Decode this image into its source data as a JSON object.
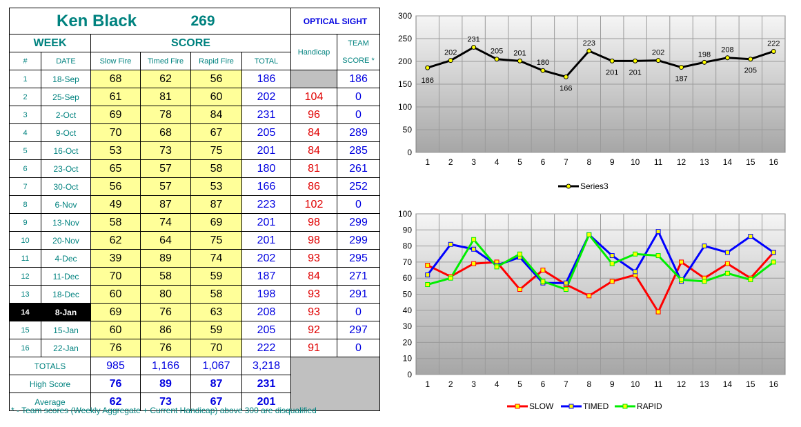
{
  "header": {
    "name": "Ken Black",
    "average": "269",
    "sight": "OPTICAL SIGHT",
    "week_label": "WEEK",
    "score_label": "SCORE",
    "handicap_label": "Handicap",
    "team_label_1": "TEAM",
    "team_label_2": "SCORE *"
  },
  "columns": [
    "#",
    "DATE",
    "Slow Fire",
    "Timed Fire",
    "Rapid Fire",
    "TOTAL"
  ],
  "rows": [
    {
      "week": "1",
      "date": "18-Sep",
      "slow": "68",
      "timed": "62",
      "rapid": "56",
      "total": "186",
      "handicap": "",
      "team": "186"
    },
    {
      "week": "2",
      "date": "25-Sep",
      "slow": "61",
      "timed": "81",
      "rapid": "60",
      "total": "202",
      "handicap": "104",
      "team": "0"
    },
    {
      "week": "3",
      "date": "2-Oct",
      "slow": "69",
      "timed": "78",
      "rapid": "84",
      "total": "231",
      "handicap": "96",
      "team": "0"
    },
    {
      "week": "4",
      "date": "9-Oct",
      "slow": "70",
      "timed": "68",
      "rapid": "67",
      "total": "205",
      "handicap": "84",
      "team": "289"
    },
    {
      "week": "5",
      "date": "16-Oct",
      "slow": "53",
      "timed": "73",
      "rapid": "75",
      "total": "201",
      "handicap": "84",
      "team": "285"
    },
    {
      "week": "6",
      "date": "23-Oct",
      "slow": "65",
      "timed": "57",
      "rapid": "58",
      "total": "180",
      "handicap": "81",
      "team": "261"
    },
    {
      "week": "7",
      "date": "30-Oct",
      "slow": "56",
      "timed": "57",
      "rapid": "53",
      "total": "166",
      "handicap": "86",
      "team": "252"
    },
    {
      "week": "8",
      "date": "6-Nov",
      "slow": "49",
      "timed": "87",
      "rapid": "87",
      "total": "223",
      "handicap": "102",
      "team": "0"
    },
    {
      "week": "9",
      "date": "13-Nov",
      "slow": "58",
      "timed": "74",
      "rapid": "69",
      "total": "201",
      "handicap": "98",
      "team": "299"
    },
    {
      "week": "10",
      "date": "20-Nov",
      "slow": "62",
      "timed": "64",
      "rapid": "75",
      "total": "201",
      "handicap": "98",
      "team": "299"
    },
    {
      "week": "11",
      "date": "4-Dec",
      "slow": "39",
      "timed": "89",
      "rapid": "74",
      "total": "202",
      "handicap": "93",
      "team": "295"
    },
    {
      "week": "12",
      "date": "11-Dec",
      "slow": "70",
      "timed": "58",
      "rapid": "59",
      "total": "187",
      "handicap": "84",
      "team": "271"
    },
    {
      "week": "13",
      "date": "18-Dec",
      "slow": "60",
      "timed": "80",
      "rapid": "58",
      "total": "198",
      "handicap": "93",
      "team": "291"
    },
    {
      "week": "14",
      "date": "8-Jan",
      "slow": "69",
      "timed": "76",
      "rapid": "63",
      "total": "208",
      "handicap": "93",
      "team": "0"
    },
    {
      "week": "15",
      "date": "15-Jan",
      "slow": "60",
      "timed": "86",
      "rapid": "59",
      "total": "205",
      "handicap": "92",
      "team": "297"
    },
    {
      "week": "16",
      "date": "22-Jan",
      "slow": "76",
      "timed": "76",
      "rapid": "70",
      "total": "222",
      "handicap": "91",
      "team": "0"
    }
  ],
  "summary": {
    "totals": {
      "label": "TOTALS",
      "slow": "985",
      "timed": "1,166",
      "rapid": "1,067",
      "total": "3,218"
    },
    "high": {
      "label": "High Score",
      "slow": "76",
      "timed": "89",
      "rapid": "87",
      "total": "231"
    },
    "average": {
      "label": "Average",
      "slow": "62",
      "timed": "73",
      "rapid": "67",
      "total": "201"
    }
  },
  "footnote": "* - Team scores (Weekly Aggregate + Current Handicap) above 300 are disqualified",
  "colors": {
    "teal": "#00827f",
    "blue": "#0000e0",
    "red": "#e00000",
    "yellow": "#ffff99",
    "frame": "#31849b"
  },
  "chart_data": [
    {
      "type": "line",
      "x": [
        1,
        2,
        3,
        4,
        5,
        6,
        7,
        8,
        9,
        10,
        11,
        12,
        13,
        14,
        15,
        16
      ],
      "series": [
        {
          "name": "Series3",
          "color": "#000000",
          "values": [
            186,
            202,
            231,
            205,
            201,
            180,
            166,
            223,
            201,
            201,
            202,
            187,
            198,
            208,
            205,
            222
          ]
        }
      ],
      "ylim": [
        0,
        300
      ],
      "yticks": [
        0,
        50,
        100,
        150,
        200,
        250,
        300
      ],
      "data_labels": true,
      "legend": "bottom",
      "grid": true
    },
    {
      "type": "line",
      "x": [
        1,
        2,
        3,
        4,
        5,
        6,
        7,
        8,
        9,
        10,
        11,
        12,
        13,
        14,
        15,
        16
      ],
      "series": [
        {
          "name": "SLOW",
          "color": "#ff0000",
          "values": [
            68,
            61,
            69,
            70,
            53,
            65,
            56,
            49,
            58,
            62,
            39,
            70,
            60,
            69,
            60,
            76
          ]
        },
        {
          "name": "TIMED",
          "color": "#0000ff",
          "values": [
            62,
            81,
            78,
            68,
            73,
            57,
            57,
            87,
            74,
            64,
            89,
            58,
            80,
            76,
            86,
            76
          ]
        },
        {
          "name": "RAPID",
          "color": "#00ee00",
          "values": [
            56,
            60,
            84,
            67,
            75,
            58,
            53,
            87,
            69,
            75,
            74,
            59,
            58,
            63,
            59,
            70
          ]
        }
      ],
      "ylim": [
        0,
        100
      ],
      "yticks": [
        0,
        10,
        20,
        30,
        40,
        50,
        60,
        70,
        80,
        90,
        100
      ],
      "legend": "bottom",
      "grid": true
    }
  ]
}
